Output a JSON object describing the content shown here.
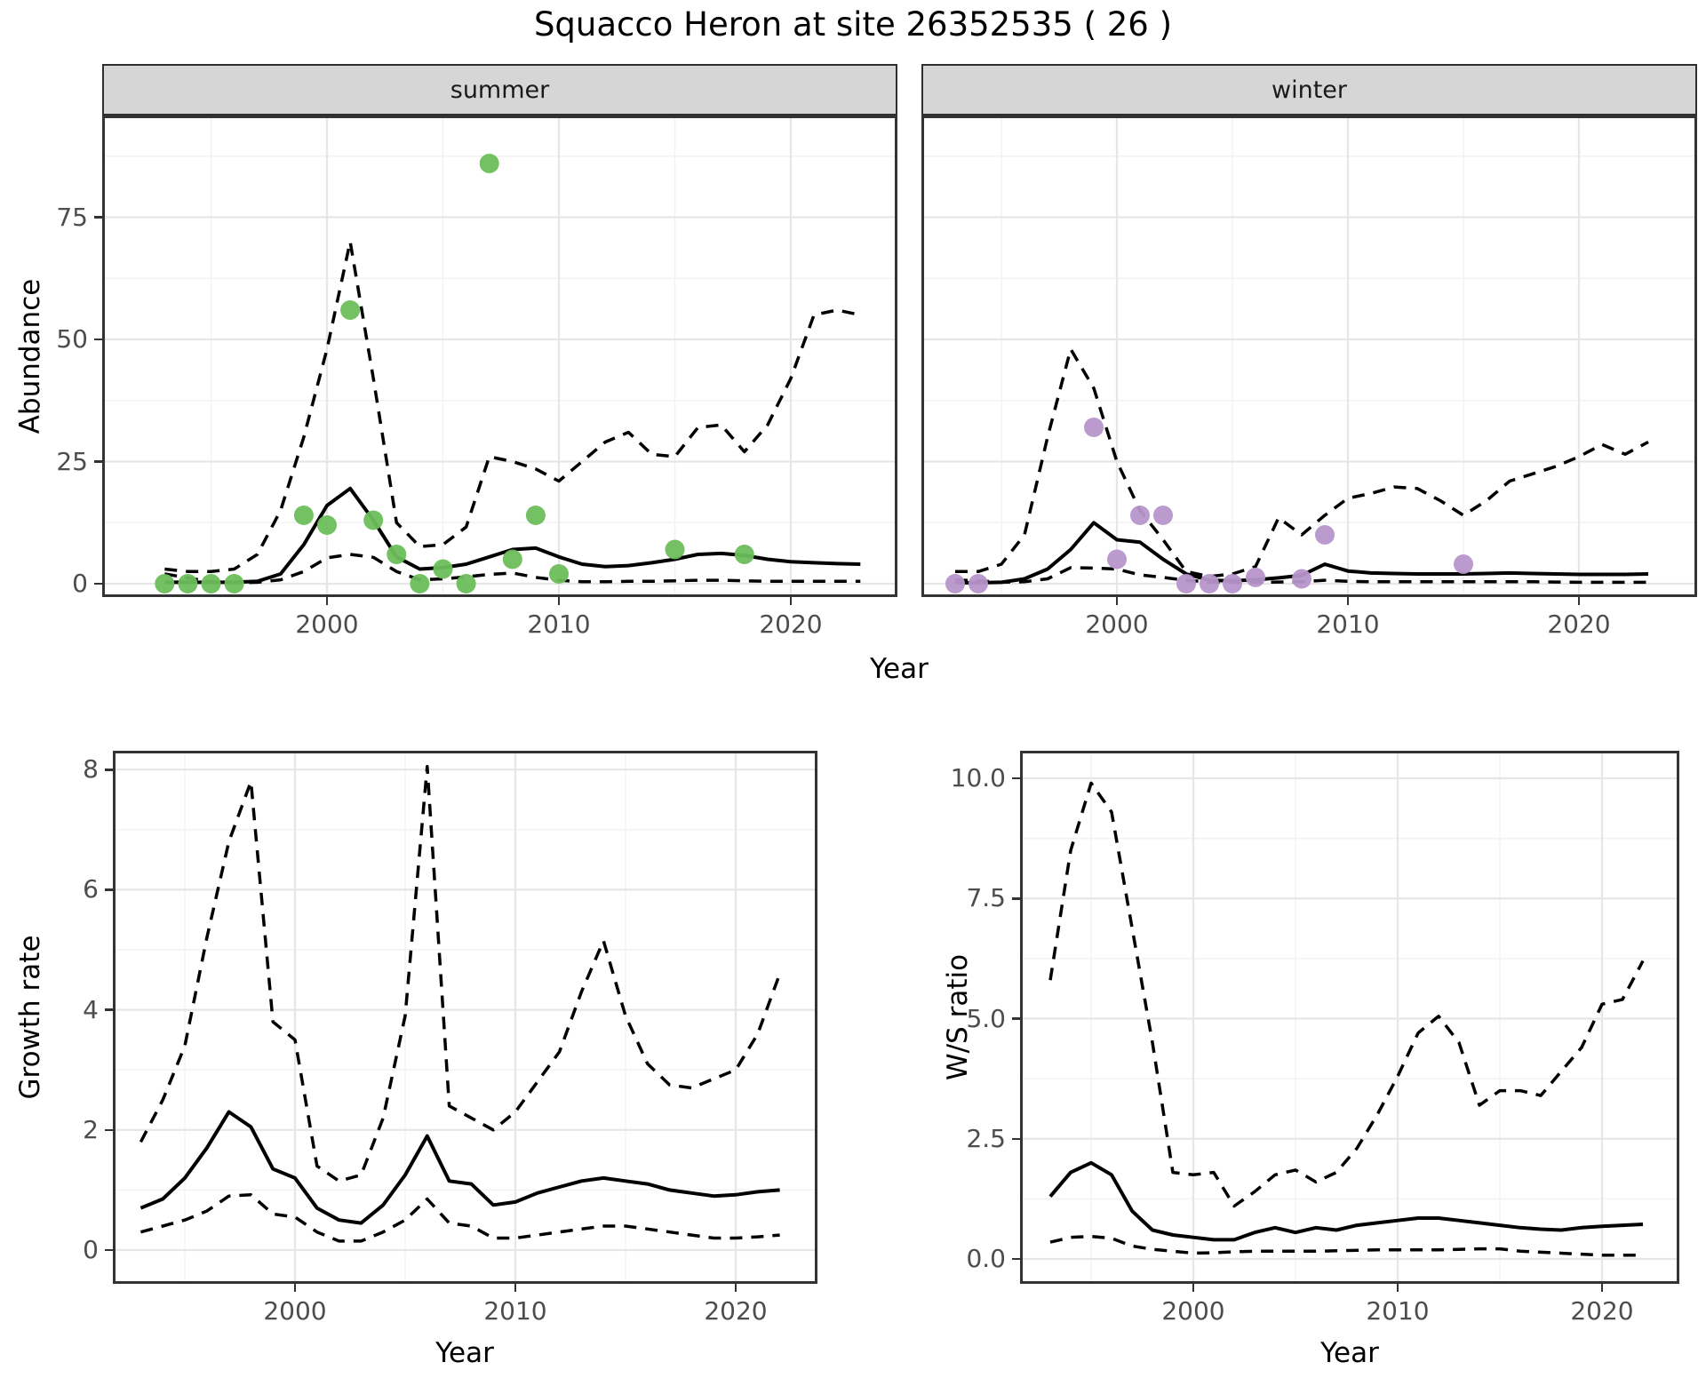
{
  "title": "Squacco Heron at site 26352535 ( 26 )",
  "facets": {
    "summer": "summer",
    "winter": "winter"
  },
  "axis_labels": {
    "top_y": "Abundance",
    "top_x": "Year",
    "growth_y": "Growth rate",
    "growth_x": "Year",
    "ws_y": "W/S ratio",
    "ws_x": "Year"
  },
  "colors": {
    "background": "#FFFFFF",
    "strip_bg": "#D6D6D6",
    "panel_border": "#333333",
    "grid_major": "#E6E6E6",
    "grid_minor": "#F2F2F2",
    "line": "#000000",
    "summer_point": "#6CBE5A",
    "winter_point": "#B795CB",
    "axis_text": "#4D4D4D"
  },
  "chart_data": [
    {
      "id": "summer",
      "type": "line",
      "facet": "summer",
      "ylabel": "Abundance",
      "xlabel": "Year",
      "x_ticks": [
        2000,
        2010,
        2020
      ],
      "x_minor": [
        1995,
        2005,
        2015
      ],
      "y_ticks": [
        0,
        25,
        50,
        75
      ],
      "y_minor": [
        12.5,
        37.5,
        62.5,
        87.5
      ],
      "show_y_labels": true,
      "x": [
        1993,
        1994,
        1995,
        1996,
        1997,
        1998,
        1999,
        2000,
        2001,
        2002,
        2003,
        2004,
        2005,
        2006,
        2007,
        2008,
        2009,
        2010,
        2011,
        2012,
        2013,
        2014,
        2015,
        2016,
        2017,
        2018,
        2019,
        2020,
        2021,
        2022,
        2023
      ],
      "series": [
        {
          "name": "fit",
          "style": "solid",
          "values": [
            0.3,
            0.3,
            0.3,
            0.3,
            0.5,
            2,
            8,
            16,
            19.5,
            13,
            5.5,
            3,
            3.3,
            4,
            5.5,
            7,
            7.3,
            5.5,
            4,
            3.5,
            3.7,
            4.3,
            5,
            6,
            6.2,
            5.8,
            5,
            4.5,
            4.3,
            4.1,
            4
          ]
        },
        {
          "name": "lower_ci",
          "style": "dashed",
          "values": [
            2,
            1.2,
            0.4,
            0.2,
            0.3,
            0.8,
            2.5,
            5.3,
            6,
            5.4,
            2.5,
            0.8,
            1,
            1.4,
            1.9,
            2.2,
            1.3,
            0.7,
            0.4,
            0.4,
            0.5,
            0.5,
            0.6,
            0.7,
            0.7,
            0.6,
            0.5,
            0.5,
            0.5,
            0.5,
            0.5
          ]
        },
        {
          "name": "upper_ci",
          "style": "dashed",
          "values": [
            3,
            2.5,
            2.5,
            3,
            6,
            15,
            30,
            48,
            70,
            42,
            12.5,
            7.6,
            8,
            11.6,
            26,
            25,
            23.5,
            21,
            25,
            29,
            31,
            26.5,
            26,
            32,
            32.5,
            27,
            32.5,
            42,
            55,
            56,
            55
          ]
        }
      ],
      "points": {
        "name": "observed_counts_summer",
        "color_key": "summer_point",
        "data": [
          [
            1993,
            0
          ],
          [
            1994,
            0
          ],
          [
            1995,
            0
          ],
          [
            1996,
            0
          ],
          [
            1999,
            14
          ],
          [
            2000,
            12
          ],
          [
            2001,
            56
          ],
          [
            2002,
            13
          ],
          [
            2003,
            6
          ],
          [
            2004,
            0
          ],
          [
            2005,
            3
          ],
          [
            2006,
            0
          ],
          [
            2007,
            86
          ],
          [
            2008,
            5
          ],
          [
            2009,
            14
          ],
          [
            2010,
            2
          ],
          [
            2015,
            7
          ],
          [
            2018,
            6
          ]
        ]
      }
    },
    {
      "id": "winter",
      "type": "line",
      "facet": "winter",
      "ylabel": "Abundance",
      "xlabel": "Year",
      "x_ticks": [
        2000,
        2010,
        2020
      ],
      "x_minor": [
        1995,
        2005,
        2015
      ],
      "y_ticks": [
        0,
        25,
        50,
        75
      ],
      "y_minor": [
        12.5,
        37.5,
        62.5,
        87.5
      ],
      "show_y_labels": false,
      "x": [
        1993,
        1994,
        1995,
        1996,
        1997,
        1998,
        1999,
        2000,
        2001,
        2002,
        2003,
        2004,
        2005,
        2006,
        2007,
        2008,
        2009,
        2010,
        2011,
        2012,
        2013,
        2014,
        2015,
        2016,
        2017,
        2018,
        2019,
        2020,
        2021,
        2022,
        2023
      ],
      "series": [
        {
          "name": "fit",
          "style": "solid",
          "values": [
            0.2,
            0.2,
            0.3,
            1,
            3,
            7,
            12.5,
            9,
            8.5,
            5,
            2,
            0.7,
            0.6,
            0.8,
            1.2,
            1.7,
            4,
            2.6,
            2.2,
            2.1,
            2,
            2,
            2,
            2.1,
            2.2,
            2.1,
            2,
            1.9,
            1.9,
            1.9,
            2
          ]
        },
        {
          "name": "lower_ci",
          "style": "dashed",
          "values": [
            0.8,
            0.6,
            0.3,
            0.4,
            1,
            3.3,
            3.2,
            3,
            1.8,
            1.3,
            0.7,
            0.35,
            0.3,
            0.3,
            0.35,
            0.4,
            0.7,
            0.5,
            0.4,
            0.4,
            0.4,
            0.4,
            0.4,
            0.4,
            0.4,
            0.4,
            0.35,
            0.3,
            0.3,
            0.3,
            0.3
          ]
        },
        {
          "name": "upper_ci",
          "style": "dashed",
          "values": [
            2.5,
            2.5,
            4,
            10,
            30,
            48,
            40,
            25,
            15,
            9,
            2.5,
            1.5,
            2,
            3.5,
            13.5,
            10,
            14,
            17.5,
            18.5,
            19.8,
            19.5,
            17,
            14,
            17,
            21,
            22.5,
            24,
            26,
            28.5,
            26.5,
            29
          ]
        }
      ],
      "points": {
        "name": "observed_counts_winter",
        "color_key": "winter_point",
        "data": [
          [
            1993,
            0
          ],
          [
            1994,
            0
          ],
          [
            1999,
            32
          ],
          [
            2000,
            5
          ],
          [
            2001,
            14
          ],
          [
            2002,
            14
          ],
          [
            2003,
            0
          ],
          [
            2004,
            0
          ],
          [
            2005,
            0
          ],
          [
            2006,
            1.3
          ],
          [
            2008,
            1
          ],
          [
            2009,
            10
          ],
          [
            2015,
            4
          ]
        ]
      }
    },
    {
      "id": "growth",
      "type": "line",
      "ylabel": "Growth rate",
      "xlabel": "Year",
      "x_ticks": [
        2000,
        2010,
        2020
      ],
      "x_minor": [
        1995,
        2005,
        2015
      ],
      "y_ticks": [
        0,
        2,
        4,
        6,
        8
      ],
      "y_minor": [
        1,
        3,
        5,
        7
      ],
      "show_y_labels": true,
      "x": [
        1993,
        1994,
        1995,
        1996,
        1997,
        1998,
        1999,
        2000,
        2001,
        2002,
        2003,
        2004,
        2005,
        2006,
        2007,
        2008,
        2009,
        2010,
        2011,
        2012,
        2013,
        2014,
        2015,
        2016,
        2017,
        2018,
        2019,
        2020,
        2021,
        2022
      ],
      "series": [
        {
          "name": "fit",
          "style": "solid",
          "values": [
            0.7,
            0.85,
            1.2,
            1.7,
            2.3,
            2.05,
            1.35,
            1.2,
            0.7,
            0.5,
            0.45,
            0.75,
            1.25,
            1.9,
            1.15,
            1.1,
            0.75,
            0.8,
            0.95,
            1.05,
            1.15,
            1.2,
            1.15,
            1.1,
            1.0,
            0.95,
            0.9,
            0.92,
            0.97,
            1.0
          ]
        },
        {
          "name": "lower_ci",
          "style": "dashed",
          "values": [
            0.3,
            0.4,
            0.5,
            0.65,
            0.9,
            0.92,
            0.6,
            0.55,
            0.3,
            0.15,
            0.15,
            0.3,
            0.5,
            0.85,
            0.45,
            0.4,
            0.2,
            0.2,
            0.25,
            0.3,
            0.35,
            0.4,
            0.4,
            0.35,
            0.3,
            0.25,
            0.2,
            0.2,
            0.22,
            0.25
          ]
        },
        {
          "name": "upper_ci",
          "style": "dashed",
          "values": [
            1.8,
            2.5,
            3.4,
            5.2,
            6.8,
            7.8,
            3.8,
            3.5,
            1.4,
            1.15,
            1.25,
            2.2,
            3.9,
            8.05,
            2.4,
            2.2,
            2.0,
            2.3,
            2.8,
            3.3,
            4.3,
            5.15,
            3.9,
            3.1,
            2.75,
            2.7,
            2.85,
            3.0,
            3.6,
            4.6
          ]
        }
      ]
    },
    {
      "id": "ws",
      "type": "line",
      "ylabel": "W/S ratio",
      "xlabel": "Year",
      "x_ticks": [
        2000,
        2010,
        2020
      ],
      "x_minor": [
        1995,
        2005,
        2015
      ],
      "y_ticks": [
        0.0,
        2.5,
        5.0,
        7.5,
        10.0
      ],
      "y_tick_labels": [
        "0.0",
        "2.5",
        "5.0",
        "7.5",
        "10.0"
      ],
      "y_minor": [
        1.25,
        3.75,
        6.25,
        8.75
      ],
      "show_y_labels": true,
      "x": [
        1993,
        1994,
        1995,
        1996,
        1997,
        1998,
        1999,
        2000,
        2001,
        2002,
        2003,
        2004,
        2005,
        2006,
        2007,
        2008,
        2009,
        2010,
        2011,
        2012,
        2013,
        2014,
        2015,
        2016,
        2017,
        2018,
        2019,
        2020,
        2021,
        2022
      ],
      "series": [
        {
          "name": "fit",
          "style": "solid",
          "values": [
            1.3,
            1.8,
            2.0,
            1.75,
            1.0,
            0.6,
            0.5,
            0.45,
            0.4,
            0.4,
            0.55,
            0.65,
            0.55,
            0.65,
            0.6,
            0.7,
            0.75,
            0.8,
            0.85,
            0.85,
            0.8,
            0.75,
            0.7,
            0.65,
            0.62,
            0.6,
            0.65,
            0.68,
            0.7,
            0.72
          ]
        },
        {
          "name": "lower_ci",
          "style": "dashed",
          "values": [
            0.35,
            0.45,
            0.47,
            0.43,
            0.27,
            0.2,
            0.16,
            0.12,
            0.13,
            0.15,
            0.16,
            0.16,
            0.16,
            0.16,
            0.17,
            0.18,
            0.19,
            0.19,
            0.19,
            0.19,
            0.2,
            0.21,
            0.21,
            0.16,
            0.14,
            0.12,
            0.1,
            0.08,
            0.08,
            0.08
          ]
        },
        {
          "name": "upper_ci",
          "style": "dashed",
          "values": [
            5.8,
            8.5,
            9.9,
            9.3,
            6.9,
            4.5,
            1.8,
            1.75,
            1.8,
            1.1,
            1.4,
            1.75,
            1.85,
            1.6,
            1.8,
            2.3,
            3.0,
            3.8,
            4.7,
            5.05,
            4.5,
            3.2,
            3.5,
            3.5,
            3.4,
            3.9,
            4.4,
            5.3,
            5.4,
            6.2
          ]
        }
      ]
    }
  ]
}
